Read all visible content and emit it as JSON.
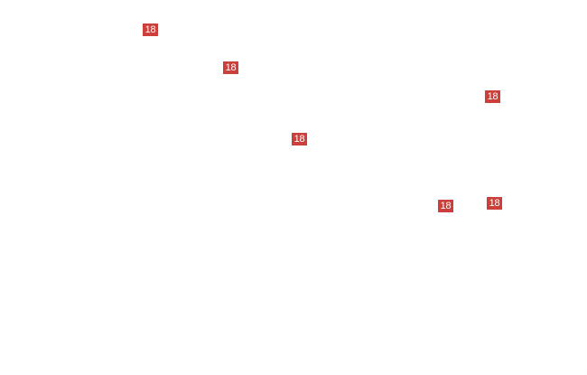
{
  "colors": {
    "badge_background": "#cd3f3a",
    "badge_text": "#ffffff",
    "background": "#ffffff"
  },
  "markers": [
    {
      "label": "18"
    },
    {
      "label": "18"
    },
    {
      "label": "18"
    },
    {
      "label": "18"
    },
    {
      "label": "18"
    },
    {
      "label": "18"
    }
  ]
}
